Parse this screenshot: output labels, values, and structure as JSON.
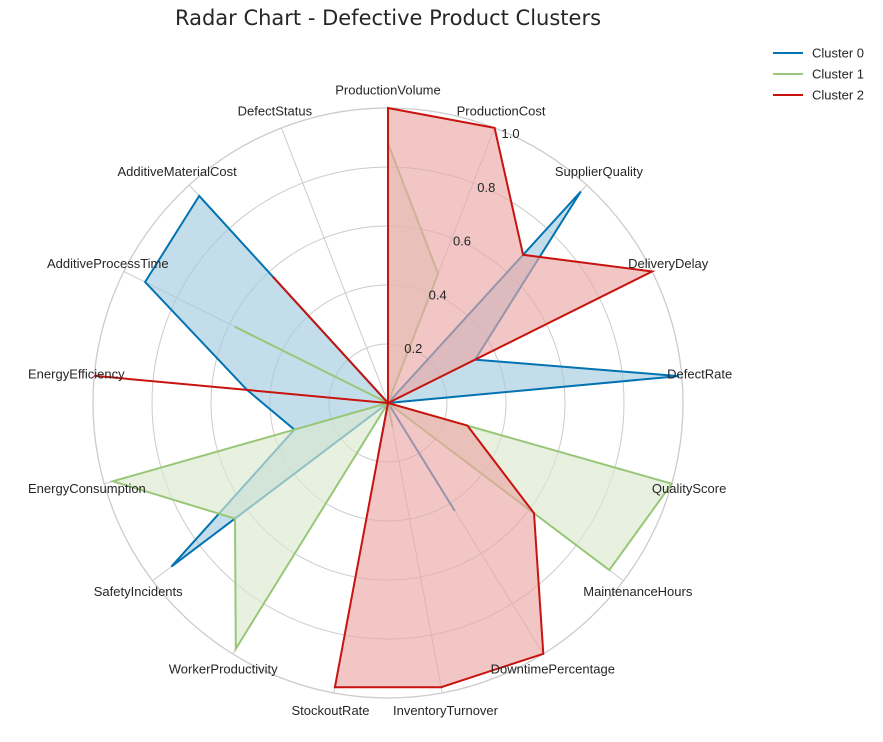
{
  "chart_data": {
    "type": "radar",
    "title": "Radar Chart - Defective Product Clusters",
    "axes": [
      "ProductionVolume",
      "ProductionCost",
      "SupplierQuality",
      "DeliveryDelay",
      "DefectRate",
      "QualityScore",
      "MaintenanceHours",
      "DowntimePercentage",
      "InventoryTurnover",
      "StockoutRate",
      "WorkerProductivity",
      "SafetyIncidents",
      "EnergyConsumption",
      "EnergyEfficiency",
      "AdditiveProcessTime",
      "AdditiveMaterialCost",
      "DefectStatus"
    ],
    "rlim": [
      0,
      1.0
    ],
    "rticks": [
      "0.2",
      "0.4",
      "0.6",
      "0.8",
      "1.0"
    ],
    "rtick_values": [
      0.2,
      0.4,
      0.6,
      0.8,
      1.0
    ],
    "grid": true,
    "legend_position": "top-right",
    "series": [
      {
        "name": "Cluster 0",
        "color": "#0173b2",
        "fill": "#a5cbde",
        "values": [
          0.0,
          0.0,
          0.97,
          0.33,
          0.99,
          0.0,
          0.0,
          0.43,
          0.0,
          0.18,
          0.0,
          0.92,
          0.33,
          0.48,
          0.92,
          0.95,
          0.0
        ]
      },
      {
        "name": "Cluster 1",
        "color": "#98c778",
        "fill": "#dce9cf",
        "values": [
          0.88,
          0.47,
          0.0,
          0.0,
          0.0,
          1.0,
          0.94,
          0.0,
          0.08,
          0.0,
          0.98,
          0.65,
          0.97,
          0.0,
          0.58,
          0.0,
          0.0
        ]
      },
      {
        "name": "Cluster 2",
        "color": "#c8130e",
        "fill": "#eaa8a6",
        "values": [
          1.0,
          1.0,
          0.68,
          1.0,
          0.0,
          0.28,
          0.62,
          1.0,
          0.98,
          0.98,
          0.0,
          0.0,
          0.0,
          1.0,
          0.0,
          0.58,
          0.0
        ]
      }
    ]
  }
}
